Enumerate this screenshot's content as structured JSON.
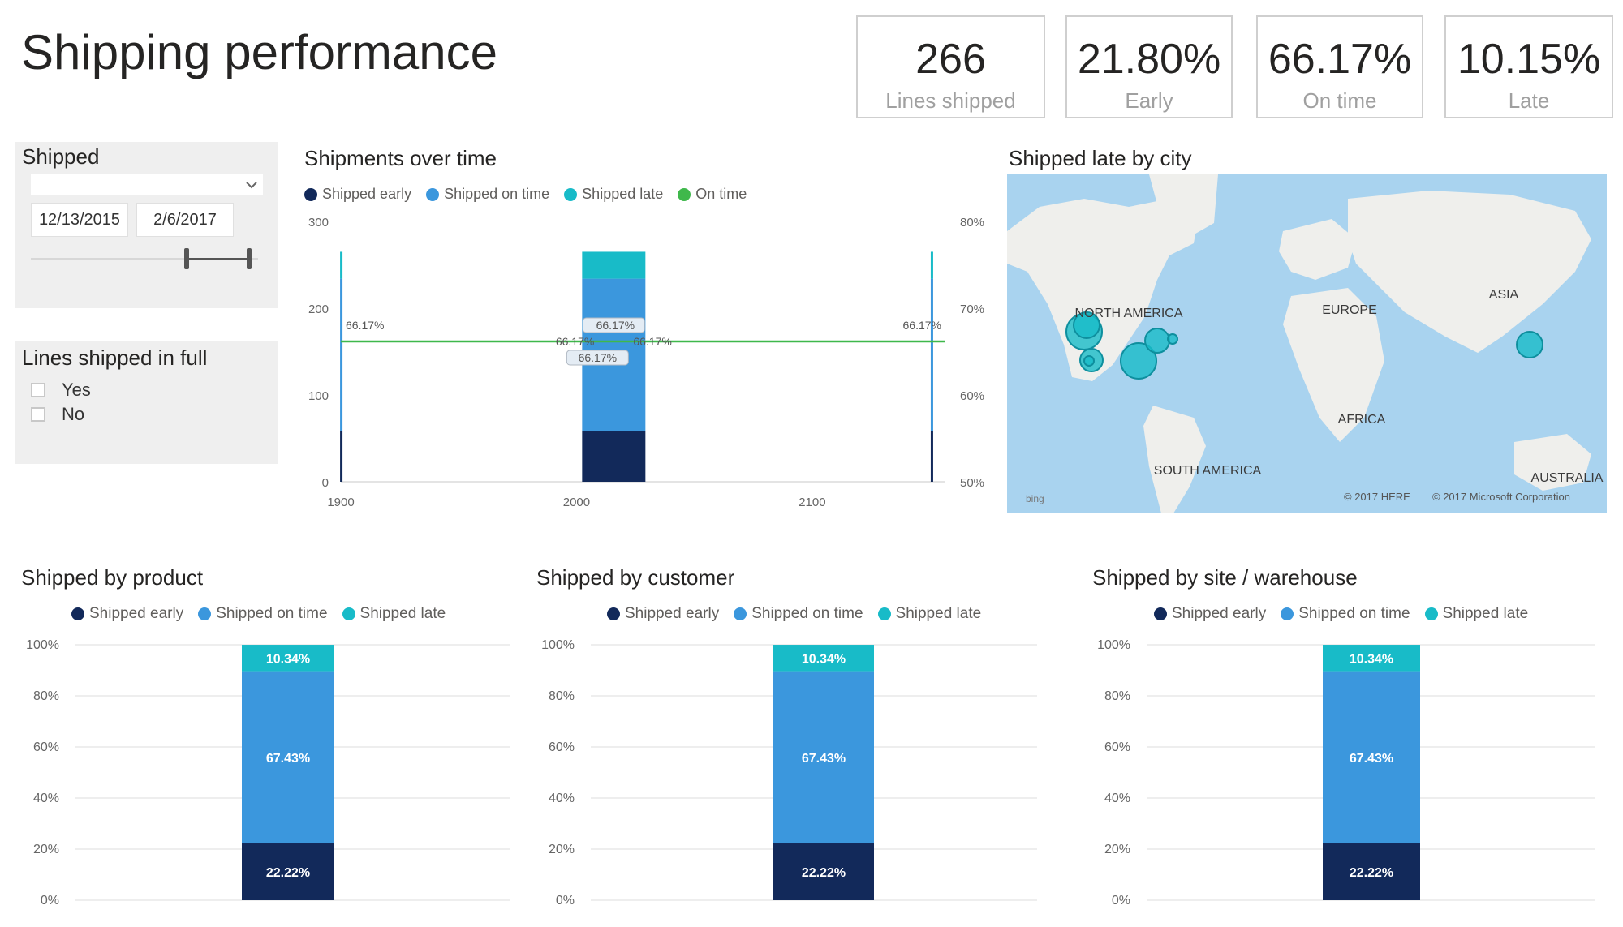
{
  "page": {
    "title": "Shipping performance"
  },
  "kpis": [
    {
      "value": "266",
      "label": "Lines shipped"
    },
    {
      "value": "21.80%",
      "label": "Early"
    },
    {
      "value": "66.17%",
      "label": "On time"
    },
    {
      "value": "10.15%",
      "label": "Late"
    }
  ],
  "filters": {
    "shipped": {
      "title": "Shipped",
      "start_date": "12/13/2015",
      "end_date": "2/6/2017"
    },
    "lines_in_full": {
      "title": "Lines shipped in full",
      "options": [
        "Yes",
        "No"
      ]
    }
  },
  "colors": {
    "early": "#12295a",
    "on_time": "#3b97dd",
    "late": "#18bbc8",
    "on_time_line": "#3fb84b"
  },
  "legend": {
    "early": "Shipped early",
    "on_time": "Shipped on time",
    "late": "Shipped late",
    "on_time_line": "On time"
  },
  "map": {
    "title": "Shipped late by city",
    "regions": [
      "NORTH AMERICA",
      "EUROPE",
      "ASIA",
      "AFRICA",
      "SOUTH AMERICA",
      "AUSTRALIA"
    ],
    "credits": [
      "© 2017 HERE",
      "© 2017 Microsoft Corporation"
    ],
    "bing": "bing"
  },
  "chart_data": [
    {
      "type": "bar",
      "title": "Shipments over time",
      "x": [
        1900,
        2000,
        2100
      ],
      "x_ticks": [
        "1900",
        "2000",
        "2100"
      ],
      "y_ticks": [
        "0",
        "100",
        "200",
        "300"
      ],
      "y2_ticks": [
        "50%",
        "60%",
        "70%",
        "80%"
      ],
      "ylim": [
        0,
        300
      ],
      "y2lim": [
        50,
        80
      ],
      "bars": [
        {
          "x": 2015.8,
          "early": 58,
          "on_time": 176,
          "late": 31
        },
        {
          "x": 1900.2,
          "early": 58,
          "on_time": 176,
          "late": 31
        },
        {
          "x": 2150.8,
          "early": 58,
          "on_time": 176,
          "late": 31
        }
      ],
      "line": {
        "name": "On time",
        "value": 66.17,
        "label": "66.17%"
      }
    },
    {
      "type": "bar",
      "title": "Shipped by product",
      "y_ticks": [
        "100%",
        "80%",
        "60%",
        "40%",
        "20%",
        "0%"
      ],
      "segments": [
        {
          "name": "Shipped early",
          "value": 22.22,
          "label": "22.22%"
        },
        {
          "name": "Shipped on time",
          "value": 67.43,
          "label": "67.43%"
        },
        {
          "name": "Shipped late",
          "value": 10.34,
          "label": "10.34%"
        }
      ]
    },
    {
      "type": "bar",
      "title": "Shipped by customer",
      "y_ticks": [
        "100%",
        "80%",
        "60%",
        "40%",
        "20%",
        "0%"
      ],
      "segments": [
        {
          "name": "Shipped early",
          "value": 22.22,
          "label": "22.22%"
        },
        {
          "name": "Shipped on time",
          "value": 67.43,
          "label": "67.43%"
        },
        {
          "name": "Shipped late",
          "value": 10.34,
          "label": "10.34%"
        }
      ]
    },
    {
      "type": "bar",
      "title": "Shipped by site / warehouse",
      "y_ticks": [
        "100%",
        "80%",
        "60%",
        "40%",
        "20%",
        "0%"
      ],
      "segments": [
        {
          "name": "Shipped early",
          "value": 22.22,
          "label": "22.22%"
        },
        {
          "name": "Shipped on time",
          "value": 67.43,
          "label": "67.43%"
        },
        {
          "name": "Shipped late",
          "value": 10.34,
          "label": "10.34%"
        }
      ]
    }
  ]
}
